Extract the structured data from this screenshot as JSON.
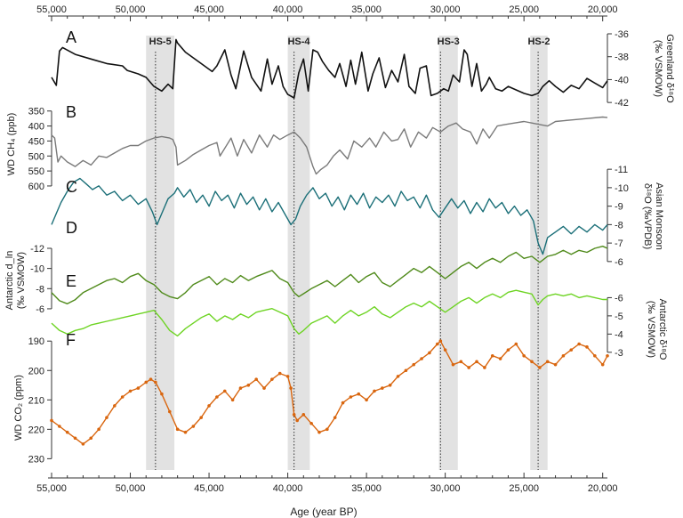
{
  "colors": {
    "greenland": "#111111",
    "ch4": "#7a7a7a",
    "monsoon": "#1b6f78",
    "d_excess": "#4f8a1a",
    "antarctic_d18o": "#6ed424",
    "co2": "#d9660f",
    "hs_band": "#e2e2e2",
    "hs_text": "#8a8a2a"
  },
  "chart_data": {
    "type": "line",
    "x_axis": {
      "label": "Age (year BP)",
      "range": [
        55000,
        19700
      ],
      "reversed": true,
      "ticks": [
        "55,000",
        "50,000",
        "45,000",
        "40,000",
        "35,000",
        "30,000",
        "25,000",
        "20,000"
      ],
      "tick_values": [
        55000,
        50000,
        45000,
        40000,
        35000,
        30000,
        25000,
        20000
      ]
    },
    "heinrich_stadials": [
      {
        "label": "HS-5",
        "range": [
          49000,
          47200
        ],
        "line_x": 48400
      },
      {
        "label": "HS-4",
        "range": [
          40000,
          38600
        ],
        "line_x": 39600
      },
      {
        "label": "HS-3",
        "range": [
          30400,
          29200
        ],
        "line_x": 30300
      },
      {
        "label": "HS-2",
        "range": [
          24600,
          23500
        ],
        "line_x": 24100
      }
    ],
    "panels": [
      {
        "id": "A",
        "series_key": "greenland",
        "axis_side": "right",
        "axis_title": [
          "Greenland δ¹⁸O",
          "(‰ VSMOW)"
        ],
        "ylim": [
          -36,
          -43
        ],
        "ticks": [
          "-36",
          "-38",
          "-40",
          "-42"
        ],
        "tick_values": [
          -36,
          -38,
          -40,
          -42
        ],
        "x": [
          55000,
          54700,
          54500,
          54300,
          53500,
          52500,
          51500,
          50500,
          50200,
          49500,
          49000,
          48500,
          48000,
          47600,
          47300,
          47100,
          47000,
          46500,
          45500,
          44800,
          44500,
          44000,
          43600,
          43300,
          42800,
          42300,
          41700,
          41300,
          41000,
          40600,
          40300,
          40000,
          39600,
          39300,
          39000,
          38700,
          38400,
          38100,
          37800,
          37400,
          37000,
          36700,
          36300,
          36000,
          35700,
          35300,
          34900,
          34600,
          34200,
          33800,
          33400,
          33000,
          32600,
          32300,
          31900,
          31600,
          31200,
          30900,
          30500,
          30100,
          29800,
          29500,
          29100,
          28800,
          28600,
          28300,
          28000,
          27700,
          27400,
          27200,
          26800,
          26400,
          26000,
          25500,
          25000,
          24500,
          24100,
          23800,
          23400,
          23000,
          22500,
          22000,
          21500,
          21000,
          20500,
          20000,
          19700
        ],
        "y": [
          -39.8,
          -40.5,
          -37.5,
          -37.2,
          -37.8,
          -38.2,
          -38.6,
          -38.8,
          -39.2,
          -39.5,
          -39.8,
          -40.6,
          -41.0,
          -40.4,
          -40.8,
          -36.5,
          -36.8,
          -37.6,
          -38.6,
          -39.3,
          -38.8,
          -37.4,
          -39.6,
          -40.8,
          -37.5,
          -39.8,
          -41.0,
          -38.2,
          -40.4,
          -38.8,
          -40.6,
          -41.3,
          -41.6,
          -39.4,
          -38.2,
          -41.0,
          -37.4,
          -37.6,
          -38.4,
          -39.2,
          -39.8,
          -38.6,
          -40.6,
          -38.3,
          -40.4,
          -37.6,
          -41.0,
          -39.5,
          -38.1,
          -40.7,
          -39.2,
          -40.2,
          -37.8,
          -40.6,
          -41.2,
          -39.0,
          -38.8,
          -41.4,
          -41.2,
          -40.8,
          -41.0,
          -39.6,
          -40.2,
          -37.4,
          -37.8,
          -40.6,
          -38.6,
          -41.0,
          -40.4,
          -39.8,
          -40.8,
          -41.0,
          -40.6,
          -40.9,
          -41.2,
          -41.4,
          -41.2,
          -40.6,
          -40.1,
          -40.6,
          -41.1,
          -40.5,
          -40.8,
          -39.9,
          -40.3,
          -40.7,
          -40.1
        ]
      },
      {
        "id": "B",
        "series_key": "ch4",
        "axis_side": "left",
        "axis_title": [
          "WD CH₄ (ppb)"
        ],
        "ylim": [
          330,
          615
        ],
        "ticks": [
          "600",
          "550",
          "500",
          "450",
          "400",
          "350"
        ],
        "tick_values": [
          600,
          550,
          500,
          450,
          400,
          350
        ],
        "x": [
          55000,
          54800,
          54600,
          54400,
          54000,
          53500,
          53000,
          52500,
          52000,
          51500,
          51000,
          50500,
          50000,
          49500,
          49000,
          48500,
          48000,
          47500,
          47300,
          47100,
          47000,
          46500,
          46000,
          45500,
          45000,
          44500,
          44300,
          43600,
          43200,
          42800,
          42300,
          41800,
          41300,
          40900,
          40500,
          40000,
          39600,
          39200,
          38800,
          38400,
          38200,
          37900,
          37500,
          37100,
          36700,
          36200,
          35800,
          35300,
          34800,
          34400,
          33900,
          33400,
          33000,
          32600,
          32200,
          31700,
          31200,
          30800,
          30300,
          29800,
          29300,
          28900,
          28400,
          28000,
          27600,
          27200,
          26700,
          26200,
          25600,
          25000,
          24500,
          24000,
          23500,
          23000,
          22000,
          21000,
          20000,
          19700
        ],
        "y": [
          430,
          440,
          520,
          500,
          520,
          535,
          515,
          530,
          500,
          505,
          490,
          475,
          465,
          465,
          450,
          440,
          435,
          440,
          445,
          470,
          530,
          515,
          495,
          480,
          465,
          455,
          500,
          440,
          500,
          445,
          490,
          430,
          470,
          430,
          445,
          430,
          420,
          440,
          470,
          535,
          560,
          545,
          530,
          500,
          480,
          510,
          450,
          470,
          440,
          470,
          420,
          450,
          445,
          410,
          470,
          420,
          440,
          405,
          420,
          400,
          390,
          410,
          420,
          460,
          410,
          440,
          400,
          395,
          390,
          385,
          390,
          395,
          400,
          385,
          380,
          375,
          370,
          372
        ]
      },
      {
        "id": "C",
        "series_key": "monsoon",
        "axis_side": "right",
        "axis_title": [
          "Asian Monsoon",
          "δ¹⁸O (‰VPDB)"
        ],
        "ylim": [
          -11.2,
          -5.8
        ],
        "ticks": [
          "-11",
          "-10",
          "-9",
          "-8",
          "-7",
          "-6"
        ],
        "tick_values": [
          -11,
          -10,
          -9,
          -8,
          -7,
          -6
        ],
        "x": [
          55000,
          54700,
          54400,
          54000,
          53600,
          53200,
          52800,
          52400,
          52000,
          51500,
          51000,
          50500,
          50000,
          49500,
          49000,
          48600,
          48300,
          48000,
          47600,
          47200,
          47000,
          46600,
          46200,
          45800,
          45400,
          45000,
          44600,
          44200,
          43800,
          43400,
          43000,
          42600,
          42200,
          41800,
          41400,
          41000,
          40600,
          40200,
          39800,
          39500,
          39200,
          38800,
          38400,
          38000,
          37600,
          37200,
          36800,
          36400,
          36000,
          35600,
          35200,
          34800,
          34400,
          34000,
          33600,
          33200,
          32800,
          32400,
          32000,
          31600,
          31200,
          30800,
          30400,
          30000,
          29600,
          29200,
          28800,
          28400,
          28000,
          27600,
          27200,
          26800,
          26400,
          26000,
          25600,
          25200,
          24800,
          24400,
          24100,
          23800,
          23500,
          23000,
          22500,
          22000,
          21500,
          21000,
          20500,
          20000,
          19700
        ],
        "y": [
          -8.0,
          -8.6,
          -9.2,
          -9.8,
          -10.3,
          -10.5,
          -10.2,
          -9.9,
          -10.1,
          -9.6,
          -9.8,
          -9.3,
          -9.6,
          -9.1,
          -9.4,
          -8.7,
          -8.0,
          -8.6,
          -9.4,
          -9.7,
          -10.0,
          -9.5,
          -9.9,
          -9.2,
          -9.6,
          -9.0,
          -9.8,
          -9.3,
          -9.6,
          -8.9,
          -9.7,
          -9.1,
          -9.5,
          -8.8,
          -9.4,
          -8.7,
          -9.2,
          -8.6,
          -8.0,
          -8.3,
          -9.0,
          -9.6,
          -10.0,
          -9.4,
          -9.7,
          -9.0,
          -9.5,
          -8.8,
          -9.6,
          -9.1,
          -9.7,
          -8.9,
          -9.5,
          -9.2,
          -9.6,
          -9.0,
          -9.8,
          -9.3,
          -9.5,
          -8.9,
          -9.6,
          -8.8,
          -8.4,
          -8.9,
          -9.4,
          -8.9,
          -9.3,
          -8.6,
          -9.2,
          -8.7,
          -9.4,
          -8.9,
          -9.2,
          -8.6,
          -9.0,
          -8.5,
          -8.8,
          -8.2,
          -7.0,
          -6.4,
          -7.3,
          -7.6,
          -7.9,
          -7.5,
          -7.9,
          -7.6,
          -8.0,
          -7.7,
          -8.0
        ]
      },
      {
        "id": "D",
        "series_key": "d_excess",
        "axis_side": "left",
        "axis_title": [
          "Antarctic d_ln",
          "(‰ VSMOW)"
        ],
        "ylim": [
          -13.5,
          -5.2
        ],
        "ticks": [
          "-6",
          "-8",
          "-10",
          "-12"
        ],
        "tick_values": [
          -6,
          -8,
          -10,
          -12
        ],
        "x": [
          55000,
          54500,
          54000,
          53500,
          53000,
          52500,
          52000,
          51500,
          51000,
          50500,
          50000,
          49500,
          49000,
          48500,
          48000,
          47500,
          47000,
          46500,
          46000,
          45500,
          45000,
          44500,
          44000,
          43500,
          43000,
          42500,
          42000,
          41500,
          41000,
          40500,
          40000,
          39600,
          39300,
          39000,
          38500,
          38000,
          37500,
          37000,
          36500,
          36000,
          35500,
          35000,
          34500,
          34000,
          33500,
          33000,
          32500,
          32000,
          31500,
          31000,
          30500,
          30000,
          29500,
          29000,
          28500,
          28000,
          27500,
          27000,
          26500,
          26000,
          25500,
          25000,
          24500,
          24000,
          23500,
          23000,
          22500,
          22000,
          21500,
          21000,
          20500,
          20000,
          19700
        ],
        "y": [
          -7.6,
          -6.8,
          -6.5,
          -6.9,
          -7.6,
          -8.0,
          -8.4,
          -8.8,
          -9.0,
          -8.6,
          -9.2,
          -9.5,
          -8.8,
          -8.4,
          -7.6,
          -7.2,
          -7.0,
          -7.6,
          -8.4,
          -8.8,
          -9.2,
          -8.4,
          -9.0,
          -8.6,
          -9.3,
          -8.8,
          -9.2,
          -9.5,
          -9.8,
          -9.0,
          -8.6,
          -7.6,
          -7.2,
          -7.5,
          -8.0,
          -8.4,
          -8.8,
          -8.2,
          -8.8,
          -9.4,
          -8.6,
          -9.2,
          -9.6,
          -8.6,
          -8.2,
          -8.8,
          -9.4,
          -10.0,
          -9.6,
          -10.2,
          -9.6,
          -9.0,
          -9.6,
          -10.2,
          -10.6,
          -10.0,
          -10.6,
          -11.0,
          -10.6,
          -11.2,
          -11.6,
          -11.0,
          -11.2,
          -10.6,
          -11.2,
          -11.4,
          -11.8,
          -11.4,
          -11.8,
          -11.6,
          -12.0,
          -12.2,
          -12.0
        ]
      },
      {
        "id": "E",
        "series_key": "antarctic_d18o",
        "axis_side": "right",
        "axis_title": [
          "Antarctic δ¹⁸O",
          "(‰ VSMOW)"
        ],
        "ylim": [
          -6.9,
          -2.6
        ],
        "ticks": [
          "-3",
          "-4",
          "-5",
          "-6"
        ],
        "tick_values": [
          -3,
          -4,
          -5,
          -6
        ],
        "x": [
          55000,
          54500,
          54000,
          53500,
          53000,
          52500,
          52000,
          51500,
          51000,
          50500,
          50000,
          49500,
          49000,
          48500,
          48000,
          47500,
          47000,
          46500,
          46000,
          45500,
          45000,
          44500,
          44000,
          43500,
          43000,
          42500,
          42000,
          41500,
          41000,
          40500,
          40000,
          39600,
          39300,
          39000,
          38500,
          38000,
          37500,
          37000,
          36500,
          36000,
          35500,
          35000,
          34500,
          34000,
          33500,
          33000,
          32500,
          32000,
          31500,
          31000,
          30500,
          30000,
          29500,
          29000,
          28500,
          28000,
          27500,
          27000,
          26500,
          26000,
          25500,
          25000,
          24500,
          24100,
          23800,
          23500,
          23000,
          22500,
          22000,
          21500,
          21000,
          20500,
          20000,
          19700
        ],
        "y": [
          -4.6,
          -4.2,
          -4.0,
          -4.2,
          -4.3,
          -4.5,
          -4.6,
          -4.7,
          -4.8,
          -4.9,
          -5.0,
          -5.1,
          -5.2,
          -5.3,
          -4.8,
          -4.2,
          -3.9,
          -4.3,
          -4.6,
          -4.9,
          -5.1,
          -4.7,
          -5.0,
          -4.8,
          -5.1,
          -4.9,
          -5.2,
          -5.3,
          -5.4,
          -5.2,
          -5.0,
          -4.3,
          -4.0,
          -4.2,
          -4.6,
          -4.8,
          -5.0,
          -4.6,
          -5.0,
          -5.3,
          -5.0,
          -5.2,
          -5.5,
          -5.1,
          -4.9,
          -5.2,
          -5.5,
          -5.7,
          -5.5,
          -5.8,
          -5.5,
          -5.2,
          -5.5,
          -5.8,
          -6.0,
          -5.7,
          -6.0,
          -6.2,
          -6.0,
          -6.3,
          -6.4,
          -6.3,
          -6.2,
          -5.6,
          -5.9,
          -6.1,
          -6.2,
          -6.1,
          -6.2,
          -6.0,
          -6.1,
          -6.0,
          -5.9,
          -5.9
        ]
      },
      {
        "id": "F",
        "series_key": "co2",
        "axis_side": "left",
        "axis_title": [
          "WD CO₂ (ppm)"
        ],
        "ylim": [
          186,
          232
        ],
        "ticks": [
          "230",
          "220",
          "210",
          "200",
          "190"
        ],
        "tick_values": [
          230,
          220,
          210,
          200,
          190
        ],
        "x": [
          55000,
          54500,
          54000,
          53500,
          53000,
          52500,
          52000,
          51500,
          51000,
          50500,
          50000,
          49500,
          49000,
          48700,
          48400,
          48000,
          47500,
          47000,
          46500,
          46000,
          45500,
          45000,
          44500,
          44000,
          43500,
          43000,
          42500,
          42000,
          41500,
          41000,
          40500,
          40000,
          39800,
          39600,
          39400,
          39000,
          38500,
          38000,
          37500,
          37000,
          36500,
          36000,
          35500,
          35000,
          34500,
          34000,
          33500,
          33000,
          32500,
          32000,
          31500,
          31000,
          30500,
          30300,
          30000,
          29500,
          29000,
          28500,
          28000,
          27500,
          27000,
          26500,
          26000,
          25500,
          25000,
          24500,
          24000,
          23500,
          23000,
          22500,
          22000,
          21500,
          21000,
          20500,
          20000,
          19700
        ],
        "y": [
          217,
          219,
          221,
          223,
          225,
          223,
          220,
          216,
          212,
          209,
          207,
          206,
          204,
          203,
          204,
          208,
          214,
          220,
          221,
          219,
          216,
          212,
          209,
          207,
          210,
          206,
          205,
          203,
          206,
          203,
          201,
          202,
          206,
          215,
          217,
          215,
          218,
          221,
          220,
          216,
          211,
          209,
          208,
          210,
          207,
          206,
          205,
          202,
          200,
          198,
          196,
          194,
          191,
          190,
          193,
          198,
          197,
          199,
          197,
          199,
          195,
          196,
          193,
          191,
          195,
          197,
          199,
          197,
          198,
          195,
          193,
          191,
          192,
          195,
          198,
          195
        ]
      }
    ]
  }
}
